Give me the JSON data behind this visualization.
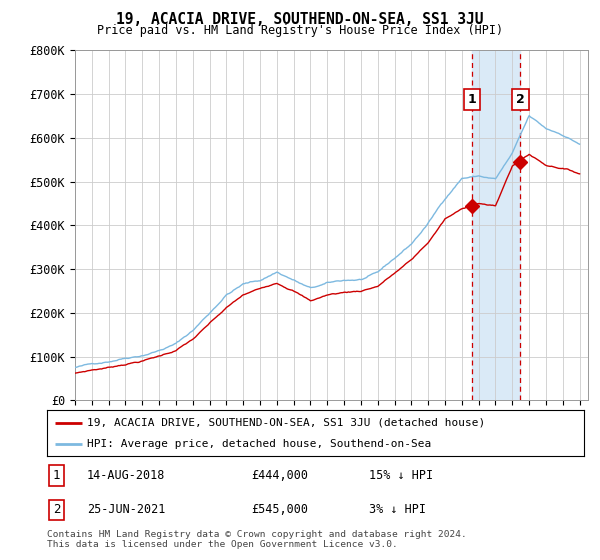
{
  "title": "19, ACACIA DRIVE, SOUTHEND-ON-SEA, SS1 3JU",
  "subtitle": "Price paid vs. HM Land Registry's House Price Index (HPI)",
  "ylabel_ticks": [
    "£0",
    "£100K",
    "£200K",
    "£300K",
    "£400K",
    "£500K",
    "£600K",
    "£700K",
    "£800K"
  ],
  "ylim": [
    0,
    800000
  ],
  "xlim_start": 1995.0,
  "xlim_end": 2025.5,
  "hpi_color": "#7db9e0",
  "price_color": "#cc0000",
  "grid_color": "#cccccc",
  "background_color": "#ffffff",
  "legend_label_price": "19, ACACIA DRIVE, SOUTHEND-ON-SEA, SS1 3JU (detached house)",
  "legend_label_hpi": "HPI: Average price, detached house, Southend-on-Sea",
  "transaction1_label": "1",
  "transaction1_date": "14-AUG-2018",
  "transaction1_price": "£444,000",
  "transaction1_hpi": "15% ↓ HPI",
  "transaction2_label": "2",
  "transaction2_date": "25-JUN-2021",
  "transaction2_price": "£545,000",
  "transaction2_hpi": "3% ↓ HPI",
  "footnote": "Contains HM Land Registry data © Crown copyright and database right 2024.\nThis data is licensed under the Open Government Licence v3.0.",
  "transaction1_x": 2018.62,
  "transaction1_y": 444000,
  "transaction2_x": 2021.48,
  "transaction2_y": 545000,
  "shade_color": "#daeaf7"
}
